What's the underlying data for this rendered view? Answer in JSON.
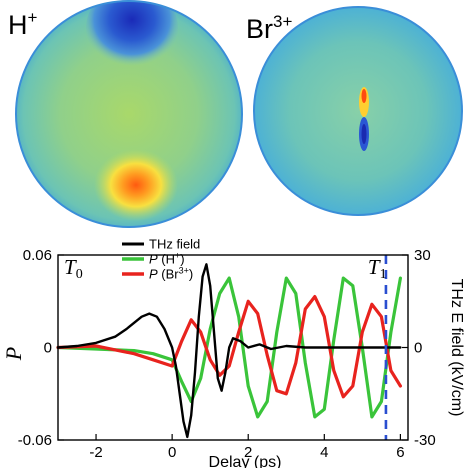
{
  "images": {
    "left_label": "H",
    "left_label_sup": "+",
    "right_label": "Br",
    "right_label_sup": "3+"
  },
  "chart_data": {
    "type": "line",
    "xlabel": "Delay (ps)",
    "ylabel_left": "P",
    "ylabel_right": "THz E field (kV/cm)",
    "xlim": [
      -3,
      6.2
    ],
    "ylim_left": [
      -0.06,
      0.06
    ],
    "ylim_right": [
      -30,
      30
    ],
    "x_ticks": [
      "-2",
      "0",
      "2",
      "4",
      "6"
    ],
    "x_tick_values": [
      -2,
      0,
      2,
      4,
      6
    ],
    "y_left_ticks": [
      "0.06",
      "0",
      "-0.06"
    ],
    "y_left_tick_values": [
      0.06,
      0,
      -0.06
    ],
    "y_right_ticks": [
      "30",
      "0",
      "-30"
    ],
    "y_right_tick_values": [
      30,
      0,
      -30
    ],
    "markers": [
      {
        "label": "T",
        "sub": "0",
        "x": -2.3
      },
      {
        "label": "T",
        "sub": "1",
        "x": 5.62
      }
    ],
    "legend": [
      {
        "name": "THz field",
        "color": "#000000",
        "italic": false,
        "sup": ""
      },
      {
        "name": "P",
        "suffix": " (H",
        "sup": "+",
        "tail": ")",
        "color": "#3ac43a",
        "italic": true
      },
      {
        "name": "P",
        "suffix": " (Br",
        "sup": "3+",
        "tail": ")",
        "color": "#e8231e",
        "italic": true
      }
    ],
    "series": [
      {
        "name": "THz field",
        "color": "#000000",
        "axis": "right",
        "x": [
          -3.0,
          -2.5,
          -2.0,
          -1.5,
          -1.2,
          -1.0,
          -0.8,
          -0.6,
          -0.4,
          -0.2,
          0.0,
          0.1,
          0.2,
          0.3,
          0.4,
          0.5,
          0.6,
          0.7,
          0.8,
          0.9,
          1.0,
          1.1,
          1.2,
          1.3,
          1.4,
          1.5,
          1.6,
          1.8,
          2.0,
          2.3,
          2.6,
          3.0,
          3.5,
          4.0,
          5.0,
          6.0
        ],
        "y": [
          0,
          0.5,
          1.5,
          3.5,
          6,
          8,
          10,
          11,
          10,
          6,
          0,
          -6,
          -15,
          -24,
          -29,
          -22,
          -8,
          10,
          23,
          27,
          20,
          5,
          -10,
          -14,
          -8,
          0,
          3,
          2,
          0,
          1,
          -0.5,
          0.5,
          0,
          0,
          0,
          0
        ]
      },
      {
        "name": "P (H+)",
        "color": "#3ac43a",
        "axis": "left",
        "x": [
          -3.0,
          -2.0,
          -1.0,
          -0.5,
          0.0,
          0.25,
          0.5,
          0.75,
          1.0,
          1.25,
          1.5,
          1.75,
          2.0,
          2.25,
          2.5,
          2.75,
          3.0,
          3.25,
          3.5,
          3.75,
          4.0,
          4.25,
          4.5,
          4.75,
          5.0,
          5.25,
          5.5,
          5.75,
          6.0
        ],
        "y": [
          0.0,
          -0.001,
          -0.002,
          -0.004,
          -0.008,
          -0.022,
          -0.035,
          -0.02,
          0.012,
          0.035,
          0.045,
          0.02,
          -0.025,
          -0.045,
          -0.035,
          0.01,
          0.045,
          0.035,
          -0.01,
          -0.045,
          -0.04,
          0.005,
          0.045,
          0.04,
          0.0,
          -0.045,
          -0.035,
          0.01,
          0.045
        ]
      },
      {
        "name": "P (Br3+)",
        "color": "#e8231e",
        "axis": "left",
        "x": [
          -3.0,
          -2.0,
          -1.0,
          -0.5,
          0.0,
          0.25,
          0.5,
          0.75,
          1.0,
          1.25,
          1.5,
          1.75,
          2.0,
          2.25,
          2.5,
          2.75,
          3.0,
          3.25,
          3.5,
          3.75,
          4.0,
          4.25,
          4.5,
          4.75,
          5.0,
          5.25,
          5.5,
          5.75,
          6.0
        ],
        "y": [
          0.0,
          0.001,
          -0.004,
          -0.008,
          -0.012,
          0.004,
          0.018,
          0.01,
          -0.008,
          -0.018,
          -0.012,
          0.01,
          0.03,
          0.022,
          -0.005,
          -0.028,
          -0.03,
          -0.01,
          0.025,
          0.033,
          0.02,
          -0.015,
          -0.032,
          -0.025,
          0.01,
          0.028,
          0.02,
          -0.015,
          -0.025
        ]
      }
    ]
  }
}
